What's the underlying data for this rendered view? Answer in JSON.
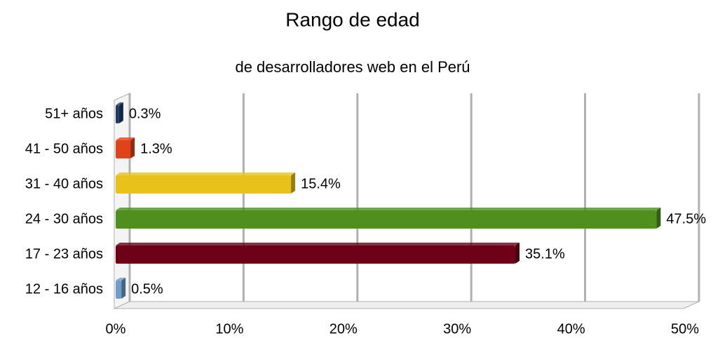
{
  "chart_data": {
    "type": "barh",
    "title": "Rango de edad",
    "subtitle": "de desarrolladores web en el Perú",
    "categories": [
      "51+ años",
      "41 - 50 años",
      "31 - 40 años",
      "24 - 30 años",
      "17 - 23 años",
      "12 - 16 años"
    ],
    "values": [
      0.3,
      1.3,
      15.4,
      47.5,
      35.1,
      0.5
    ],
    "value_labels": [
      "0.3%",
      "1.3%",
      "15.4%",
      "47.5%",
      "35.1%",
      "0.5%"
    ],
    "colors": [
      "#1f3b63",
      "#e0421a",
      "#e8c21a",
      "#4e8f1e",
      "#6e0018",
      "#6f9cc8"
    ],
    "xlim": [
      0,
      50
    ],
    "xticks": [
      {
        "value": 0,
        "label": "0%"
      },
      {
        "value": 10,
        "label": "10%"
      },
      {
        "value": 20,
        "label": "20%"
      },
      {
        "value": 30,
        "label": "30%"
      },
      {
        "value": 40,
        "label": "40%"
      },
      {
        "value": 50,
        "label": "50%"
      }
    ],
    "grid": true
  }
}
